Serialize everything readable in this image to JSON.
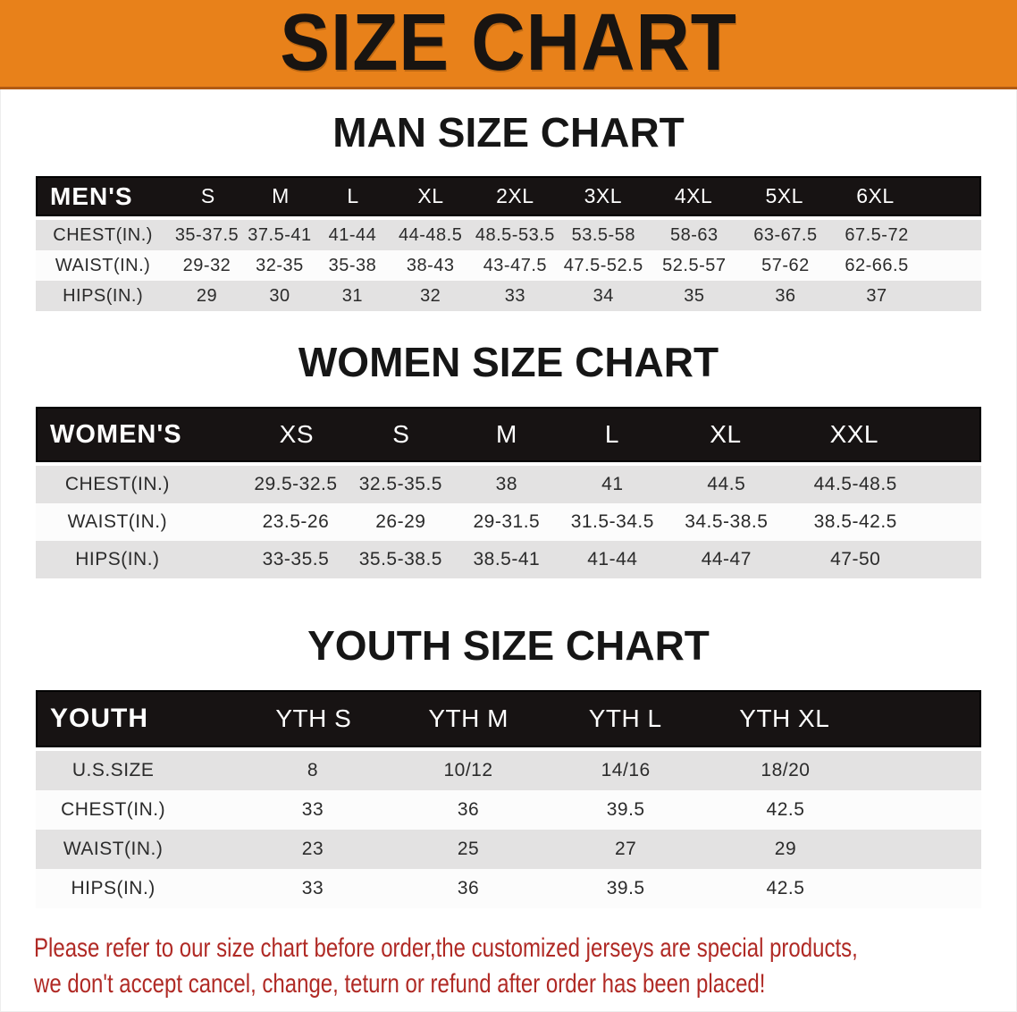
{
  "banner": {
    "title": "SIZE CHART"
  },
  "colors": {
    "banner_orange": "#e8811a",
    "banner_border": "#b15a13",
    "header_black": "#171313",
    "row_gray": "#e3e2e2",
    "disclaimer_red": "#b02a25"
  },
  "sections": {
    "men": {
      "title": "MAN SIZE CHART",
      "table": {
        "header": [
          "MEN'S",
          "S",
          "M",
          "L",
          "XL",
          "2XL",
          "3XL",
          "4XL",
          "5XL",
          "6XL"
        ],
        "rows": [
          [
            "CHEST(IN.)",
            "35-37.5",
            "37.5-41",
            "41-44",
            "44-48.5",
            "48.5-53.5",
            "53.5-58",
            "58-63",
            "63-67.5",
            "67.5-72"
          ],
          [
            "WAIST(IN.)",
            "29-32",
            "32-35",
            "35-38",
            "38-43",
            "43-47.5",
            "47.5-52.5",
            "52.5-57",
            "57-62",
            "62-66.5"
          ],
          [
            "HIPS(IN.)",
            "29",
            "30",
            "31",
            "32",
            "33",
            "34",
            "35",
            "36",
            "37"
          ]
        ]
      }
    },
    "women": {
      "title": "WOMEN SIZE CHART",
      "table": {
        "header": [
          "WOMEN'S",
          "XS",
          "S",
          "M",
          "L",
          "XL",
          "XXL"
        ],
        "rows": [
          [
            "CHEST(IN.)",
            "29.5-32.5",
            "32.5-35.5",
            "38",
            "41",
            "44.5",
            "44.5-48.5"
          ],
          [
            "WAIST(IN.)",
            "23.5-26",
            "26-29",
            "29-31.5",
            "31.5-34.5",
            "34.5-38.5",
            "38.5-42.5"
          ],
          [
            "HIPS(IN.)",
            "33-35.5",
            "35.5-38.5",
            "38.5-41",
            "41-44",
            "44-47",
            "47-50"
          ]
        ]
      }
    },
    "youth": {
      "title": "YOUTH SIZE CHART",
      "table": {
        "header": [
          "YOUTH",
          "YTH S",
          "YTH M",
          "YTH L",
          "YTH XL"
        ],
        "rows": [
          [
            "U.S.SIZE",
            "8",
            "10/12",
            "14/16",
            "18/20"
          ],
          [
            "CHEST(IN.)",
            "33",
            "36",
            "39.5",
            "42.5"
          ],
          [
            "WAIST(IN.)",
            "23",
            "25",
            "27",
            "29"
          ],
          [
            "HIPS(IN.)",
            "33",
            "36",
            "39.5",
            "42.5"
          ]
        ]
      }
    }
  },
  "disclaimer": {
    "lines": [
      "Please refer to our size chart before order,the customized jerseys are special products,",
      "we don't accept cancel, change, teturn or refund after order has been placed!"
    ]
  }
}
